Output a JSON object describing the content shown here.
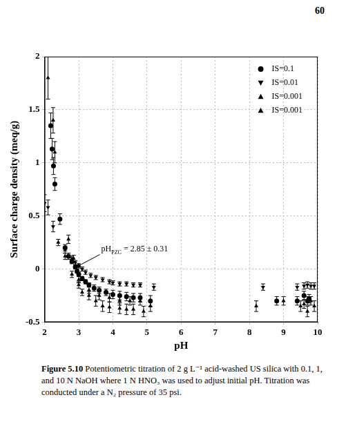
{
  "page_number": "60",
  "caption": {
    "label": "Figure 5.10",
    "text": "Potentiometric titration of 2 g L⁻¹ acid-washed US silica with 0.1, 1, and 10 N NaOH where 1 N HNO₃ was used to adjust initial pH. Titration was conducted under a N₂ pressure of 35 psi."
  },
  "chart_data": {
    "type": "scatter",
    "x_label": "pH",
    "y_label": "Surface charge density (meq/g)",
    "xlim": [
      2,
      10
    ],
    "xticks": [
      2,
      3,
      4,
      5,
      6,
      7,
      8,
      9,
      10
    ],
    "ylim": [
      -0.5,
      2
    ],
    "yticks": [
      -0.5,
      0,
      0.5,
      1,
      1.5,
      2
    ],
    "grid": true,
    "legend": "upper right",
    "annotation": {
      "text": "pH",
      "subscript": "PZC",
      "text_after": "= 2.85 ± 0.31",
      "x": 2.85,
      "y": 0
    },
    "series": [
      {
        "name": "IS=0.1",
        "color": "#000000",
        "marker": "circle",
        "x": [
          2.18,
          2.22,
          2.26,
          2.3,
          2.45,
          2.6,
          2.7,
          2.8,
          2.9,
          2.95,
          3.0,
          3.1,
          3.2,
          3.3,
          3.45,
          3.6,
          3.8,
          4.0,
          4.2,
          4.4,
          4.6,
          4.8,
          5.1,
          8.8,
          9.4,
          9.6,
          9.7,
          9.75
        ],
        "values": [
          1.35,
          1.13,
          0.97,
          0.8,
          0.47,
          0.2,
          0.12,
          0.07,
          0.02,
          -0.02,
          -0.05,
          -0.09,
          -0.12,
          -0.15,
          -0.18,
          -0.2,
          -0.22,
          -0.24,
          -0.25,
          -0.26,
          -0.27,
          -0.27,
          -0.3,
          -0.3,
          -0.3,
          -0.25,
          -0.3,
          -0.28
        ],
        "errors": [
          0.12,
          0.1,
          0.08,
          0.06,
          0.05,
          0.03,
          0.03,
          0.02,
          0.02,
          0.02,
          0.02,
          0.02,
          0.02,
          0.02,
          0.03,
          0.03,
          0.03,
          0.04,
          0.04,
          0.04,
          0.04,
          0.04,
          0.05,
          0.04,
          0.04,
          0.04,
          0.04,
          0.04
        ]
      },
      {
        "name": "IS=0.01",
        "color": "#000000",
        "marker": "triangle-down",
        "x": [
          2.0,
          2.1,
          2.25,
          2.6,
          2.8,
          2.9,
          3.0,
          3.1,
          3.2,
          3.35,
          3.5,
          3.7,
          3.9,
          4.0,
          4.2,
          4.4,
          4.6,
          4.8,
          5.2,
          8.4,
          9.4,
          9.6,
          9.7,
          9.8,
          9.9
        ],
        "values": [
          0.62,
          0.58,
          0.4,
          0.18,
          0.1,
          0.06,
          0.03,
          0.0,
          -0.03,
          -0.06,
          -0.08,
          -0.1,
          -0.12,
          -0.13,
          -0.14,
          -0.14,
          -0.15,
          -0.15,
          -0.17,
          -0.17,
          -0.17,
          -0.16,
          -0.15,
          -0.16,
          -0.16
        ],
        "errors": [
          0.08,
          0.07,
          0.05,
          0.03,
          0.02,
          0.02,
          0.02,
          0.02,
          0.02,
          0.02,
          0.02,
          0.02,
          0.02,
          0.02,
          0.02,
          0.02,
          0.02,
          0.02,
          0.03,
          0.03,
          0.03,
          0.03,
          0.03,
          0.03,
          0.03
        ]
      },
      {
        "name": "IS=0.001",
        "color": "#000000",
        "marker": "triangle-up",
        "x": [
          2.1,
          2.25,
          2.3,
          2.7,
          2.85,
          3.0,
          3.1,
          3.3,
          3.5,
          3.7,
          3.9,
          4.2,
          4.4,
          4.6,
          4.9,
          5.1,
          8.2,
          9.5,
          9.7,
          9.9
        ],
        "values": [
          1.8,
          1.4,
          1.1,
          0.28,
          0.1,
          -0.1,
          -0.22,
          -0.25,
          -0.3,
          -0.35,
          -0.36,
          -0.37,
          -0.38,
          -0.38,
          -0.4,
          -0.35,
          -0.35,
          -0.35,
          -0.4,
          -0.35
        ],
        "errors": [
          0.2,
          0.12,
          0.1,
          0.04,
          0.03,
          0.03,
          0.03,
          0.04,
          0.05,
          0.05,
          0.05,
          0.05,
          0.05,
          0.05,
          0.05,
          0.05,
          0.05,
          0.05,
          0.05,
          0.05
        ]
      },
      {
        "name": "IS=0.001",
        "color": "#000000",
        "marker": "triangle-up",
        "x": [
          2.4,
          2.6,
          2.8,
          3.0,
          3.3,
          3.6,
          3.9,
          4.2,
          4.5,
          4.8,
          9.0,
          9.6,
          9.8
        ],
        "values": [
          0.25,
          0.12,
          -0.05,
          -0.15,
          -0.2,
          -0.25,
          -0.27,
          -0.3,
          -0.3,
          -0.3,
          -0.3,
          -0.33,
          -0.3
        ],
        "errors": [
          0.03,
          0.03,
          0.03,
          0.03,
          0.03,
          0.04,
          0.04,
          0.04,
          0.04,
          0.04,
          0.04,
          0.04,
          0.04
        ]
      }
    ]
  }
}
